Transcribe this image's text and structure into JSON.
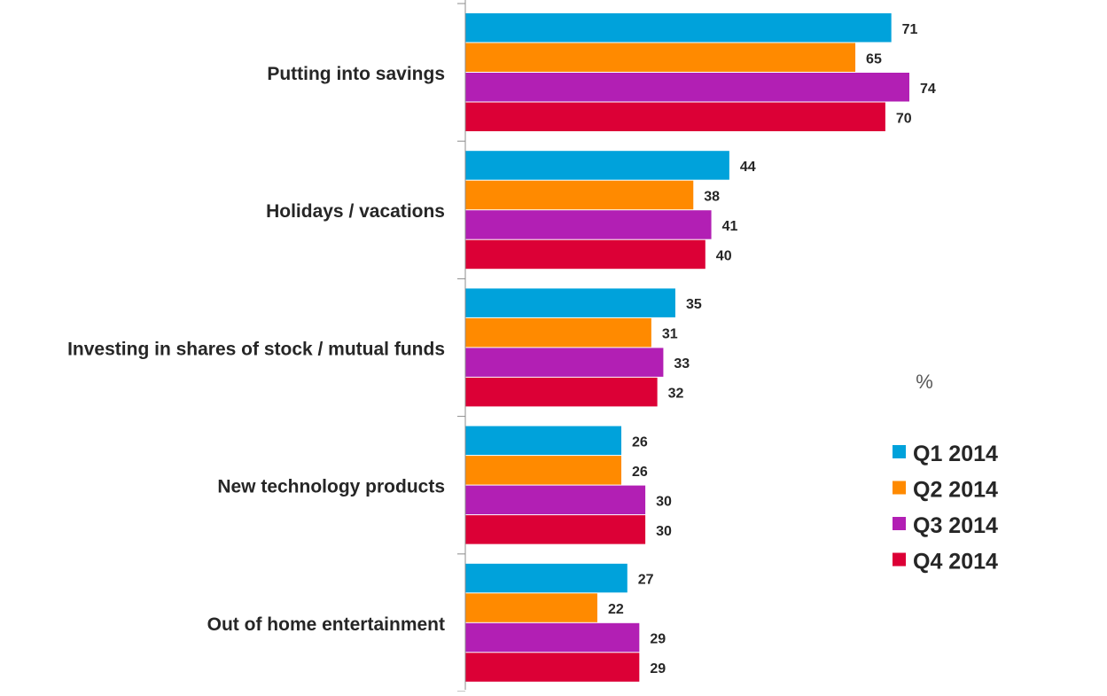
{
  "chart_data": {
    "type": "bar",
    "orientation": "horizontal",
    "categories": [
      "Putting into savings",
      "Holidays / vacations",
      "Investing in shares of stock / mutual funds",
      "New technology products",
      "Out of home entertainment"
    ],
    "series": [
      {
        "name": "Q1 2014",
        "color": "#00A2DB",
        "values": [
          71,
          44,
          35,
          26,
          27
        ]
      },
      {
        "name": "Q2 2014",
        "color": "#FF8A00",
        "values": [
          65,
          38,
          31,
          26,
          22
        ]
      },
      {
        "name": "Q3 2014",
        "color": "#B21FB4",
        "values": [
          74,
          41,
          33,
          30,
          29
        ]
      },
      {
        "name": "Q4 2014",
        "color": "#DC0036",
        "values": [
          70,
          40,
          32,
          30,
          29
        ]
      }
    ],
    "unit_label": "%",
    "xlim": [
      0,
      100
    ],
    "grid": false,
    "legend_position": "right",
    "data_labels": true
  }
}
